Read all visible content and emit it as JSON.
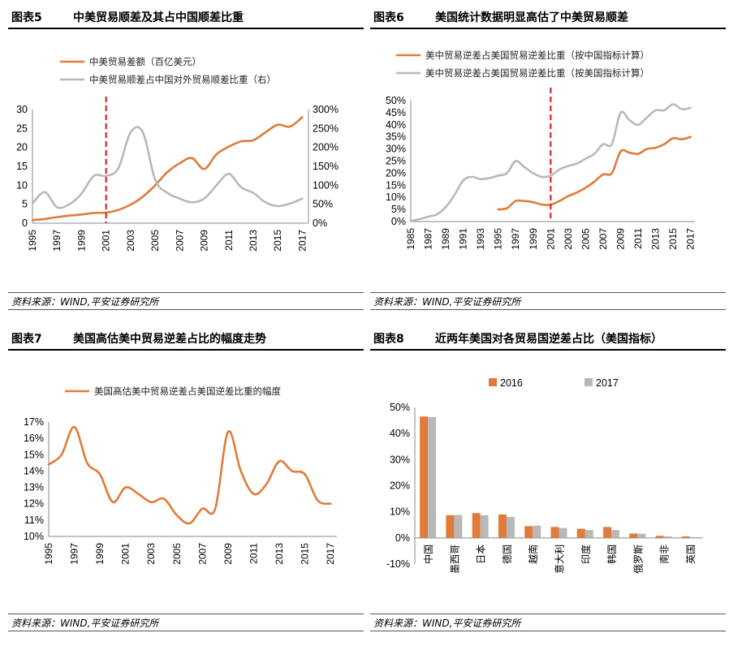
{
  "colors": {
    "orange": "#E07B39",
    "gray": "#B8B8B8",
    "red": "#D9262B"
  },
  "panels": [
    {
      "num": "图表5",
      "title": "中美贸易顺差及其占中国顺差比重",
      "source": "资料来源：WIND,平安证券研究所"
    },
    {
      "num": "图表6",
      "title": "美国统计数据明显高估了中美贸易顺差",
      "source": "资料来源：WIND,平安证券研究所"
    },
    {
      "num": "图表7",
      "title": "美国高估美中贸易逆差占比的幅度走势",
      "source": "资料来源：WIND,平安证券研究所"
    },
    {
      "num": "图表8",
      "title": "近两年美国对各贸易国逆差占比（美国指标）",
      "source": "资料来源：WIND,平安证券研究所"
    }
  ],
  "chart_data": [
    {
      "type": "line",
      "title": "中美贸易顺差及其占中国顺差比重",
      "x_ticks": [
        "1995",
        "1997",
        "1999",
        "2001",
        "2003",
        "2005",
        "2007",
        "2009",
        "2011",
        "2013",
        "2015",
        "2017"
      ],
      "xlim": [
        1995,
        2017.5
      ],
      "ylim_left": [
        0,
        30
      ],
      "y_ticks_left": [
        "0",
        "5",
        "10",
        "15",
        "20",
        "25",
        "30"
      ],
      "ylim_right": [
        0,
        300
      ],
      "y_ticks_right": [
        "0%",
        "50%",
        "100%",
        "150%",
        "200%",
        "250%",
        "300%"
      ],
      "vline_x": 2001,
      "series": [
        {
          "name": "中美贸易差额（百亿美元）",
          "axis": "left",
          "color": "orange",
          "x": [
            1995,
            1996,
            1997,
            1998,
            1999,
            2000,
            2001,
            2002,
            2003,
            2004,
            2005,
            2006,
            2007,
            2008,
            2009,
            2010,
            2011,
            2012,
            2013,
            2014,
            2015,
            2016,
            2017
          ],
          "y": [
            0.8,
            1.1,
            1.6,
            2.0,
            2.3,
            2.7,
            2.8,
            3.5,
            4.9,
            7.0,
            10.0,
            13.5,
            15.8,
            17.2,
            14.3,
            18.2,
            20.2,
            21.6,
            21.9,
            24.0,
            26.0,
            25.5,
            28.0
          ]
        },
        {
          "name": "中美贸易顺差占中国对外贸易顺差比重（右）",
          "axis": "right",
          "color": "gray",
          "x": [
            1995,
            1996,
            1997,
            1998,
            1999,
            2000,
            2001,
            2002,
            2003,
            2004,
            2005,
            2006,
            2007,
            2008,
            2009,
            2010,
            2011,
            2012,
            2013,
            2014,
            2015,
            2016,
            2017
          ],
          "y": [
            52,
            82,
            42,
            50,
            78,
            125,
            125,
            145,
            240,
            240,
            115,
            80,
            65,
            55,
            65,
            100,
            130,
            95,
            80,
            55,
            45,
            52,
            65
          ]
        }
      ]
    },
    {
      "type": "line",
      "title": "美国统计数据明显高估了中美贸易顺差",
      "x_ticks": [
        "1985",
        "1987",
        "1989",
        "1991",
        "1993",
        "1995",
        "1997",
        "1999",
        "2001",
        "2003",
        "2005",
        "2007",
        "2009",
        "2011",
        "2013",
        "2015",
        "2017"
      ],
      "xlim": [
        1985,
        2017.5
      ],
      "ylim": [
        0,
        50
      ],
      "y_ticks": [
        "0%",
        "5%",
        "10%",
        "15%",
        "20%",
        "25%",
        "30%",
        "35%",
        "40%",
        "45%",
        "50%"
      ],
      "vline_x": 2001,
      "series": [
        {
          "name": "美中贸易逆差占美国贸易逆差比重（按中国指标计算）",
          "color": "orange",
          "x": [
            1995,
            1996,
            1997,
            1998,
            1999,
            2000,
            2001,
            2002,
            2003,
            2004,
            2005,
            2006,
            2007,
            2008,
            2009,
            2010,
            2011,
            2012,
            2013,
            2014,
            2015,
            2016,
            2017
          ],
          "y": [
            5,
            5.5,
            8.5,
            8.5,
            8,
            7,
            7,
            8.5,
            10.5,
            12,
            14,
            16.5,
            19.5,
            20,
            29,
            28.5,
            28,
            30,
            30.5,
            32,
            34.5,
            34,
            35
          ]
        },
        {
          "name": "美中贸易逆差占美国贸易逆差比重（按美国指标计算）",
          "color": "gray",
          "x": [
            1985,
            1986,
            1987,
            1988,
            1989,
            1990,
            1991,
            1992,
            1993,
            1994,
            1995,
            1996,
            1997,
            1998,
            1999,
            2000,
            2001,
            2002,
            2003,
            2004,
            2005,
            2006,
            2007,
            2008,
            2009,
            2010,
            2011,
            2012,
            2013,
            2014,
            2015,
            2016,
            2017
          ],
          "y": [
            0.2,
            1,
            2,
            3,
            6,
            11,
            17,
            18.5,
            17.5,
            18,
            19,
            20,
            25,
            22.5,
            20,
            18.5,
            19,
            21.5,
            23,
            24,
            26,
            28,
            32,
            32,
            45,
            42,
            40,
            43,
            46,
            46,
            48.5,
            46.5,
            47
          ]
        }
      ]
    },
    {
      "type": "line",
      "title": "美国高估美中贸易逆差占比的幅度走势",
      "x_ticks": [
        "1995",
        "1997",
        "1999",
        "2001",
        "2003",
        "2005",
        "2007",
        "2009",
        "2011",
        "2013",
        "2015",
        "2017"
      ],
      "xlim": [
        1995,
        2017.5
      ],
      "ylim": [
        10,
        17
      ],
      "y_ticks": [
        "10%",
        "11%",
        "12%",
        "13%",
        "14%",
        "15%",
        "16%",
        "17%"
      ],
      "series": [
        {
          "name": "美国高估美中贸易逆差占美国逆差比重的幅度",
          "color": "orange",
          "x": [
            1995,
            1996,
            1997,
            1998,
            1999,
            2000,
            2001,
            2002,
            2003,
            2004,
            2005,
            2006,
            2007,
            2008,
            2009,
            2010,
            2011,
            2012,
            2013,
            2014,
            2015,
            2016,
            2017
          ],
          "y": [
            14.4,
            15.0,
            16.7,
            14.5,
            13.8,
            12.1,
            13.0,
            12.6,
            12.1,
            12.3,
            11.3,
            10.8,
            11.7,
            11.7,
            16.4,
            14.0,
            12.6,
            13.2,
            14.6,
            14.0,
            13.8,
            12.2,
            12.0
          ]
        }
      ]
    },
    {
      "type": "bar",
      "title": "近两年美国对各贸易国逆差占比（美国指标）",
      "categories": [
        "中国",
        "墨西哥",
        "日本",
        "德国",
        "越南",
        "意大利",
        "印度",
        "韩国",
        "俄罗斯",
        "南非",
        "英国"
      ],
      "ylim": [
        -10,
        50
      ],
      "y_ticks": [
        "-10%",
        "0%",
        "10%",
        "20%",
        "30%",
        "40%",
        "50%"
      ],
      "series": [
        {
          "name": "2016",
          "color": "orange",
          "values": [
            46.5,
            8.7,
            9.5,
            9.0,
            4.5,
            4.2,
            3.5,
            4.2,
            1.7,
            0.8,
            0.6
          ]
        },
        {
          "name": "2017",
          "color": "gray",
          "values": [
            46.3,
            8.8,
            8.7,
            8.0,
            4.7,
            3.8,
            3.0,
            3.0,
            1.6,
            0.6,
            0.3
          ]
        }
      ]
    }
  ]
}
